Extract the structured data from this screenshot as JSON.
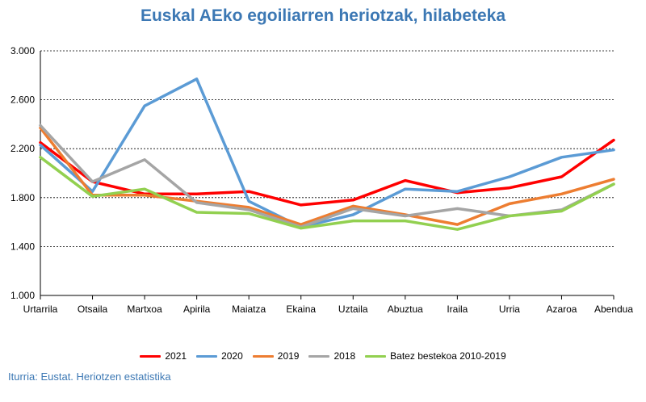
{
  "chart_data": {
    "type": "line",
    "title": "Euskal AEko egoiliarren heriotzak, hilabeteka",
    "categories": [
      "Urtarrila",
      "Otsaila",
      "Martxoa",
      "Apirila",
      "Maiatza",
      "Ekaina",
      "Uztaila",
      "Abuztua",
      "Iraila",
      "Urria",
      "Azaroa",
      "Abendua"
    ],
    "ylim": [
      1000,
      3000
    ],
    "yticks": [
      1000,
      1400,
      1800,
      2200,
      2600,
      3000
    ],
    "ytick_labels": [
      "1.000",
      "1.400",
      "1.800",
      "2.200",
      "2.600",
      "3.000"
    ],
    "grid": "horizontal dashed",
    "legend_position": "bottom",
    "series": [
      {
        "name": "2021",
        "color": "#ff0000",
        "values": [
          2250,
          1930,
          1830,
          1830,
          1850,
          1740,
          1780,
          1940,
          1840,
          1880,
          1970,
          2270
        ]
      },
      {
        "name": "2020",
        "color": "#5b9bd5",
        "values": [
          2230,
          1850,
          2550,
          2770,
          1770,
          1560,
          1660,
          1870,
          1850,
          1970,
          2130,
          2190
        ]
      },
      {
        "name": "2019",
        "color": "#ed7d31",
        "values": [
          2370,
          1820,
          1820,
          1770,
          1720,
          1580,
          1730,
          1660,
          1580,
          1750,
          1830,
          1950
        ]
      },
      {
        "name": "2018",
        "color": "#a5a5a5",
        "values": [
          2390,
          1930,
          2110,
          1760,
          1700,
          1560,
          1710,
          1650,
          1710,
          1650,
          1700,
          1910
        ]
      },
      {
        "name": "Batez bestekoa 2010-2019",
        "color": "#92d050",
        "values": [
          2130,
          1810,
          1870,
          1680,
          1670,
          1550,
          1610,
          1610,
          1540,
          1650,
          1690,
          1910
        ]
      }
    ]
  },
  "source_note": "Iturria: Eustat. Heriotzen estatistika"
}
